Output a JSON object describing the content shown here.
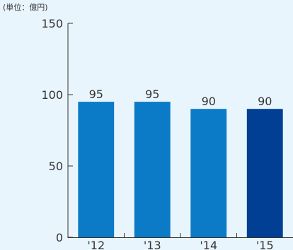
{
  "chart_data": {
    "type": "bar",
    "unit_label": "(単位：億円)",
    "categories": [
      "'12",
      "'13",
      "'14",
      "'15"
    ],
    "values": [
      95,
      95,
      90,
      90
    ],
    "value_labels": [
      "95",
      "95",
      "90",
      "90"
    ],
    "ylim": [
      0,
      150
    ],
    "yticks": [
      0,
      50,
      100,
      150
    ],
    "ytick_labels": [
      "0",
      "50",
      "100",
      "150"
    ],
    "grid": false,
    "colors": {
      "bar": "#0b7bc7",
      "bar_highlight": "#003f94",
      "axis": "#333333",
      "background": "#e9f5fc"
    },
    "highlight_index": 3
  }
}
